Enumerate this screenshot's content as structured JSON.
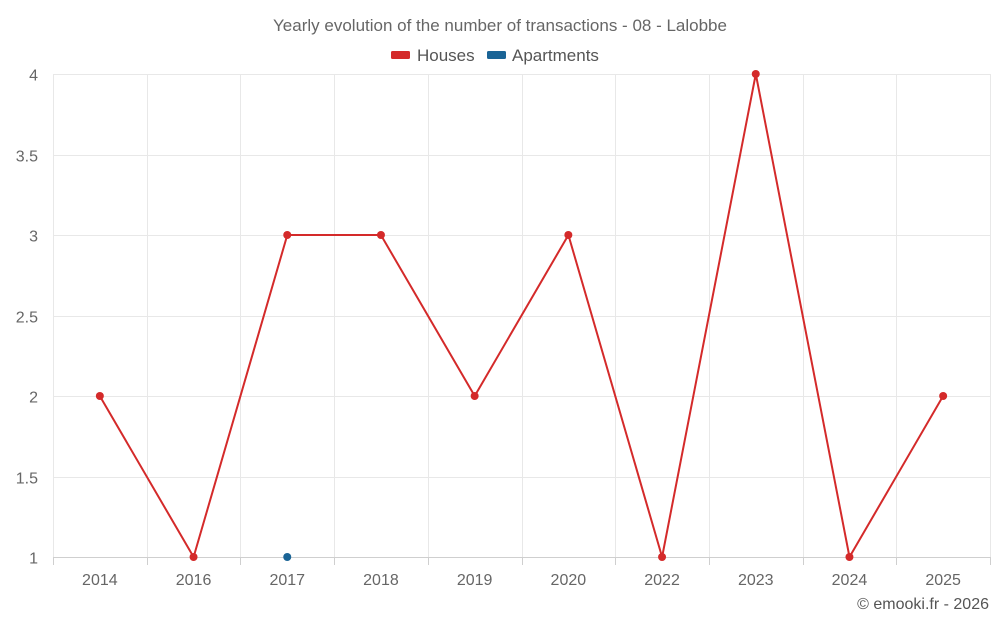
{
  "chart_data": {
    "type": "line",
    "title": "Yearly evolution of the number of transactions - 08 - Lalobbe",
    "categories": [
      "2014",
      "2016",
      "2017",
      "2018",
      "2019",
      "2020",
      "2022",
      "2023",
      "2024",
      "2025"
    ],
    "series": [
      {
        "name": "Houses",
        "color": "#d42a2a",
        "values": [
          2,
          1,
          3,
          3,
          2,
          3,
          1,
          4,
          1,
          2
        ]
      },
      {
        "name": "Apartments",
        "color": "#1a6496",
        "values": [
          null,
          null,
          1,
          null,
          null,
          null,
          null,
          null,
          null,
          null
        ]
      }
    ],
    "y_ticks": [
      "1",
      "1.5",
      "2",
      "2.5",
      "3",
      "3.5",
      "4"
    ],
    "ylim": [
      1,
      4
    ],
    "xlabel": "",
    "ylabel": "",
    "legend": "top-center",
    "grid": true
  },
  "credit": "© emooki.fr - 2026"
}
